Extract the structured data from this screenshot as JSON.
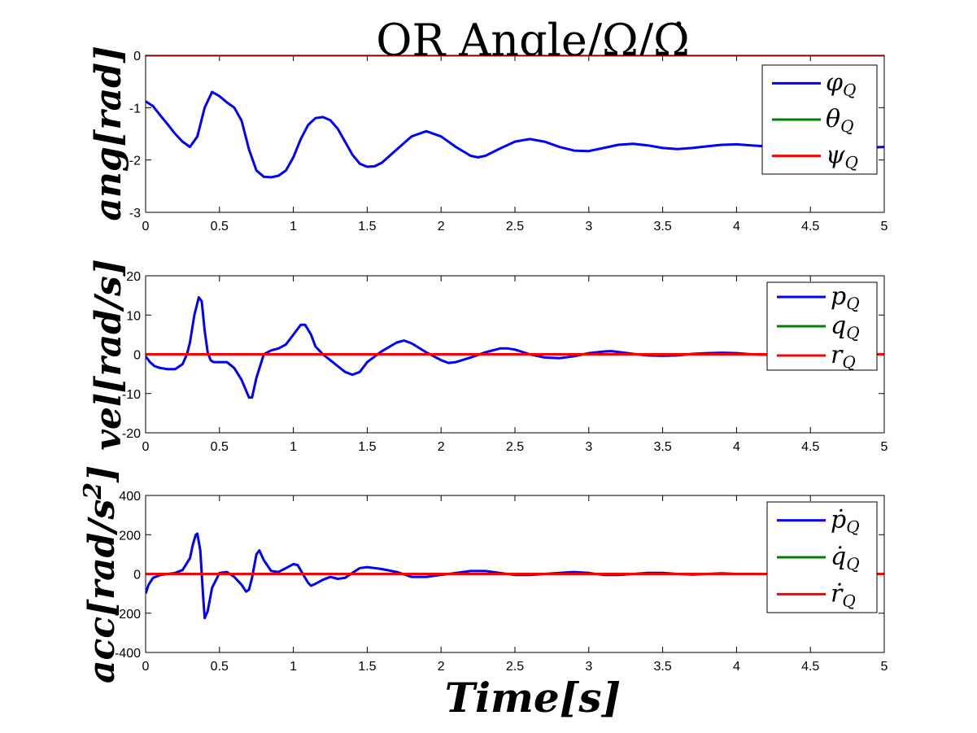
{
  "figure": {
    "title": "QR Angle/Ω/Ω̇",
    "xlabel": "Time[s]"
  },
  "chart_data": [
    {
      "type": "line",
      "ylabel": "ang[rad]",
      "xlim": [
        0,
        5
      ],
      "ylim": [
        -3,
        0
      ],
      "xticks": [
        "0",
        "0.5",
        "1",
        "1.5",
        "2",
        "2.5",
        "3",
        "3.5",
        "4",
        "4.5",
        "5"
      ],
      "yticks": [
        "0",
        "-1",
        "-2",
        "-3"
      ],
      "legend": "top-right",
      "series": [
        {
          "name": "φQ",
          "main": "φ",
          "sub": "Q",
          "color": "#0000ff",
          "x": [
            0,
            0.05,
            0.1,
            0.15,
            0.2,
            0.25,
            0.3,
            0.35,
            0.4,
            0.45,
            0.5,
            0.55,
            0.6,
            0.65,
            0.7,
            0.75,
            0.8,
            0.85,
            0.9,
            0.95,
            1.0,
            1.05,
            1.1,
            1.15,
            1.2,
            1.25,
            1.3,
            1.35,
            1.4,
            1.45,
            1.5,
            1.55,
            1.6,
            1.7,
            1.8,
            1.9,
            2.0,
            2.1,
            2.2,
            2.25,
            2.3,
            2.4,
            2.5,
            2.6,
            2.7,
            2.8,
            2.9,
            3.0,
            3.1,
            3.2,
            3.3,
            3.4,
            3.5,
            3.6,
            3.7,
            3.8,
            3.9,
            4.0,
            4.1,
            4.2,
            4.3,
            4.4,
            4.5,
            4.6,
            4.7,
            4.8,
            4.9,
            5.0
          ],
          "y": [
            -0.88,
            -0.97,
            -1.15,
            -1.32,
            -1.5,
            -1.65,
            -1.75,
            -1.55,
            -1.0,
            -0.7,
            -0.78,
            -0.9,
            -1.0,
            -1.25,
            -1.8,
            -2.2,
            -2.32,
            -2.33,
            -2.3,
            -2.2,
            -1.95,
            -1.6,
            -1.33,
            -1.2,
            -1.18,
            -1.24,
            -1.4,
            -1.65,
            -1.9,
            -2.07,
            -2.13,
            -2.12,
            -2.05,
            -1.8,
            -1.55,
            -1.45,
            -1.55,
            -1.75,
            -1.92,
            -1.95,
            -1.92,
            -1.78,
            -1.65,
            -1.6,
            -1.65,
            -1.75,
            -1.82,
            -1.83,
            -1.77,
            -1.71,
            -1.69,
            -1.72,
            -1.77,
            -1.79,
            -1.77,
            -1.74,
            -1.71,
            -1.7,
            -1.72,
            -1.74,
            -1.76,
            -1.76,
            -1.75,
            -1.74,
            -1.74,
            -1.75,
            -1.76,
            -1.75
          ]
        },
        {
          "name": "θQ",
          "main": "θ",
          "sub": "Q",
          "color": "#008000",
          "x": [
            0,
            5
          ],
          "y": [
            0,
            0
          ]
        },
        {
          "name": "ψQ",
          "main": "ψ",
          "sub": "Q",
          "color": "#ff0000",
          "x": [
            0,
            5
          ],
          "y": [
            0,
            0
          ]
        }
      ]
    },
    {
      "type": "line",
      "ylabel": "vel[rad/s]",
      "xlim": [
        0,
        5
      ],
      "ylim": [
        -20,
        20
      ],
      "xticks": [
        "0",
        "0.5",
        "1",
        "1.5",
        "2",
        "2.5",
        "3",
        "3.5",
        "4",
        "4.5",
        "5"
      ],
      "yticks": [
        "20",
        "10",
        "0",
        "-10",
        "-20"
      ],
      "legend": "top-right",
      "series": [
        {
          "name": "pQ",
          "main": "p",
          "sub": "Q",
          "color": "#0000ff",
          "x": [
            0,
            0.03,
            0.06,
            0.1,
            0.15,
            0.2,
            0.25,
            0.28,
            0.3,
            0.33,
            0.36,
            0.38,
            0.4,
            0.42,
            0.44,
            0.46,
            0.5,
            0.55,
            0.6,
            0.65,
            0.7,
            0.72,
            0.75,
            0.8,
            0.85,
            0.9,
            0.95,
            1.0,
            1.05,
            1.08,
            1.12,
            1.15,
            1.2,
            1.25,
            1.3,
            1.35,
            1.4,
            1.45,
            1.5,
            1.6,
            1.7,
            1.75,
            1.8,
            1.9,
            2.0,
            2.05,
            2.1,
            2.2,
            2.3,
            2.4,
            2.45,
            2.5,
            2.6,
            2.7,
            2.8,
            2.9,
            3.0,
            3.1,
            3.15,
            3.2,
            3.3,
            3.4,
            3.5,
            3.6,
            3.7,
            3.8,
            3.9,
            4.0,
            4.1,
            4.2,
            4.3,
            4.4,
            4.5,
            4.6,
            4.7,
            4.8,
            4.9,
            5.0
          ],
          "y": [
            -0.5,
            -2.0,
            -3.0,
            -3.5,
            -3.8,
            -3.8,
            -2.5,
            0.0,
            3.0,
            10.0,
            14.5,
            13.5,
            6.0,
            0.5,
            -1.5,
            -2.0,
            -2.0,
            -2.0,
            -3.5,
            -6.5,
            -11.0,
            -11.0,
            -6.0,
            0.0,
            1.0,
            1.5,
            2.5,
            5.0,
            7.5,
            7.5,
            5.0,
            2.0,
            0.0,
            -1.5,
            -3.0,
            -4.5,
            -5.2,
            -4.5,
            -2.0,
            0.8,
            3.0,
            3.5,
            2.8,
            0.5,
            -1.5,
            -2.2,
            -2.0,
            -0.8,
            0.5,
            1.5,
            1.5,
            1.2,
            0.0,
            -0.8,
            -1.0,
            -0.5,
            0.3,
            0.7,
            0.8,
            0.6,
            0.1,
            -0.3,
            -0.4,
            -0.3,
            0.1,
            0.3,
            0.4,
            0.3,
            0.0,
            -0.1,
            -0.1,
            0.0,
            0.0,
            0.0,
            0.0,
            0.0,
            0.0,
            0.0
          ]
        },
        {
          "name": "qQ",
          "main": "q",
          "sub": "Q",
          "color": "#008000",
          "x": [
            0,
            5
          ],
          "y": [
            0,
            0
          ]
        },
        {
          "name": "rQ",
          "main": "r",
          "sub": "Q",
          "color": "#ff0000",
          "x": [
            0,
            5
          ],
          "y": [
            0,
            0
          ]
        }
      ]
    },
    {
      "type": "line",
      "ylabel": "acc[rad/s2]",
      "ylabel_main": "acc[rad/s",
      "ylabel_sup": "2",
      "ylabel_end": "]",
      "xlim": [
        0,
        5
      ],
      "ylim": [
        -400,
        400
      ],
      "xticks": [
        "0",
        "0.5",
        "1",
        "1.5",
        "2",
        "2.5",
        "3",
        "3.5",
        "4",
        "4.5",
        "5"
      ],
      "yticks": [
        "400",
        "200",
        "0",
        "-200",
        "-400"
      ],
      "legend": "top-right",
      "series": [
        {
          "name": "ṗQ",
          "main": "ṗ",
          "sub": "Q",
          "color": "#0000ff",
          "x": [
            0,
            0.02,
            0.05,
            0.1,
            0.15,
            0.2,
            0.25,
            0.3,
            0.32,
            0.34,
            0.35,
            0.37,
            0.39,
            0.4,
            0.42,
            0.45,
            0.5,
            0.55,
            0.6,
            0.65,
            0.68,
            0.7,
            0.72,
            0.75,
            0.77,
            0.8,
            0.85,
            0.9,
            0.95,
            1.0,
            1.03,
            1.06,
            1.1,
            1.12,
            1.15,
            1.2,
            1.25,
            1.3,
            1.35,
            1.4,
            1.45,
            1.5,
            1.55,
            1.6,
            1.7,
            1.8,
            1.9,
            2.0,
            2.1,
            2.2,
            2.3,
            2.4,
            2.5,
            2.6,
            2.7,
            2.8,
            2.9,
            3.0,
            3.1,
            3.2,
            3.3,
            3.4,
            3.5,
            3.6,
            3.7,
            3.8,
            3.9,
            4.0,
            4.2,
            4.4,
            4.6,
            4.8,
            5.0
          ],
          "y": [
            -100,
            -55,
            -20,
            -5,
            0,
            5,
            20,
            80,
            150,
            200,
            205,
            120,
            -120,
            -225,
            -190,
            -70,
            5,
            10,
            -15,
            -55,
            -90,
            -80,
            -20,
            100,
            120,
            70,
            15,
            10,
            30,
            50,
            45,
            5,
            -45,
            -60,
            -50,
            -30,
            -15,
            -25,
            -20,
            5,
            30,
            35,
            30,
            25,
            10,
            -15,
            -15,
            -5,
            5,
            15,
            15,
            5,
            -5,
            -5,
            0,
            5,
            10,
            5,
            -5,
            -5,
            0,
            5,
            5,
            0,
            -3,
            0,
            3,
            0,
            0,
            0,
            0,
            0,
            0
          ]
        },
        {
          "name": "q̇Q",
          "main": "q̇",
          "sub": "Q",
          "color": "#008000",
          "x": [
            0,
            5
          ],
          "y": [
            0,
            0
          ]
        },
        {
          "name": "ṙQ",
          "main": "ṙ",
          "sub": "Q",
          "color": "#ff0000",
          "x": [
            0,
            5
          ],
          "y": [
            0,
            0
          ]
        }
      ]
    }
  ]
}
